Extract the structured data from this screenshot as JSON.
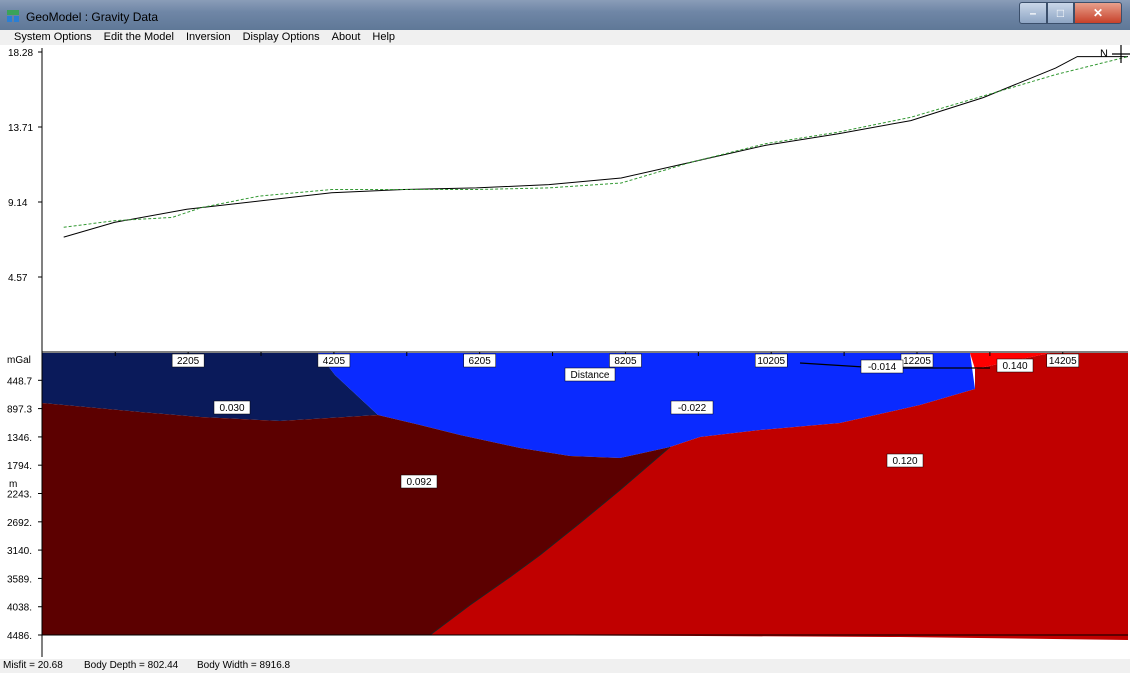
{
  "window": {
    "title": "GeoModel : Gravity Data",
    "app_icon": "geomodel-app-icon",
    "controls": [
      "minimize-icon",
      "maximize-icon",
      "close-icon"
    ]
  },
  "menu": [
    "System Options",
    "Edit the Model",
    "Inversion",
    "Display Options",
    "About",
    "Help"
  ],
  "gravity_plot": {
    "y_ticks": [
      "18.28",
      "13.71",
      "9.14",
      "4.57"
    ],
    "y_range": [
      0,
      18.28
    ],
    "x_range": [
      0,
      15000
    ],
    "north_label": "N",
    "series": [
      {
        "style": "solid",
        "color": "#000000",
        "points": [
          [
            300,
            7.0
          ],
          [
            1000,
            7.9
          ],
          [
            2000,
            8.7
          ],
          [
            3000,
            9.2
          ],
          [
            4000,
            9.7
          ],
          [
            5000,
            9.9
          ],
          [
            6000,
            10.0
          ],
          [
            7000,
            10.2
          ],
          [
            8000,
            10.6
          ],
          [
            9000,
            11.6
          ],
          [
            10000,
            12.6
          ],
          [
            11000,
            13.3
          ],
          [
            12000,
            14.1
          ],
          [
            13000,
            15.5
          ],
          [
            14000,
            17.3
          ],
          [
            14300,
            18.0
          ],
          [
            15000,
            18.0
          ]
        ]
      },
      {
        "style": "dashed",
        "color": "#339933",
        "points": [
          [
            300,
            7.6
          ],
          [
            1000,
            8.0
          ],
          [
            1800,
            8.2
          ],
          [
            2200,
            8.8
          ],
          [
            3000,
            9.5
          ],
          [
            4000,
            9.9
          ],
          [
            5000,
            9.9
          ],
          [
            6000,
            9.9
          ],
          [
            7000,
            10.0
          ],
          [
            8000,
            10.3
          ],
          [
            9000,
            11.6
          ],
          [
            10000,
            12.7
          ],
          [
            11000,
            13.4
          ],
          [
            12000,
            14.3
          ],
          [
            13000,
            15.6
          ],
          [
            14000,
            16.9
          ],
          [
            15000,
            18.0
          ]
        ]
      }
    ]
  },
  "model_section": {
    "unit_label": "mGal",
    "depth_unit": "m",
    "x_axis_label": "Distance",
    "x_range": [
      200,
      15100
    ],
    "depth_range": [
      0,
      4486
    ],
    "depth_ticks": [
      "448.7",
      "897.3",
      "1346.",
      "1794.",
      "2243.",
      "2692.",
      "3140.",
      "3589.",
      "4038.",
      "4486."
    ],
    "x_ticks": [
      "2205",
      "4205",
      "6205",
      "8205",
      "10205",
      "12205",
      "14205"
    ],
    "bodies": [
      {
        "density": "0.030",
        "color": "#0a1a5a"
      },
      {
        "density": "-0.022",
        "color": "#0a2aff"
      },
      {
        "density": "-0.014",
        "color": "#0a2aff"
      },
      {
        "density": "0.092",
        "color": "#5c0000"
      },
      {
        "density": "0.120",
        "color": "#c00000"
      },
      {
        "density": "0.140",
        "color": "#ff0000"
      }
    ]
  },
  "status": {
    "misfit": "Misfit = 20.68",
    "body_depth": "Body Depth =   802.44",
    "body_width": "Body Width =   8916.8"
  }
}
